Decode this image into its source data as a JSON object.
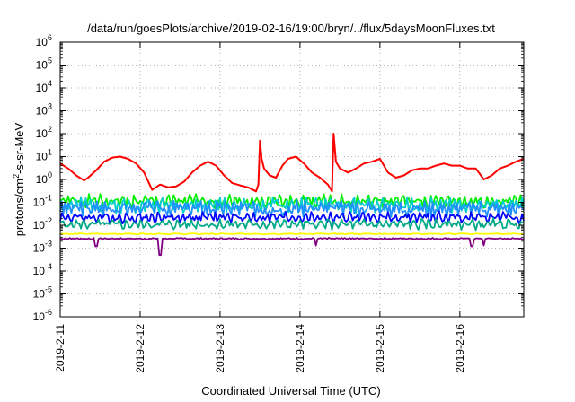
{
  "chart_data": {
    "type": "line",
    "title": "/data/run/goesPlots/archive/2019-02-16/19:00/bryn/../flux/5daysMoonFluxes.txt",
    "xlabel": "Coordinated Universal Time (UTC)",
    "ylabel": {
      "prefix": "protons/cm",
      "sup": "2",
      "suffix": "-s-sr-MeV"
    },
    "x_ticks": [
      "2019-2-11",
      "2019-2-12",
      "2019-2-13",
      "2019-2-14",
      "2019-2-15",
      "2019-2-16"
    ],
    "y_ticks": [
      {
        "base": "10",
        "exp": "6",
        "val": 6
      },
      {
        "base": "10",
        "exp": "5",
        "val": 5
      },
      {
        "base": "10",
        "exp": "4",
        "val": 4
      },
      {
        "base": "10",
        "exp": "3",
        "val": 3
      },
      {
        "base": "10",
        "exp": "2",
        "val": 2
      },
      {
        "base": "10",
        "exp": "1",
        "val": 1
      },
      {
        "base": "10",
        "exp": "0",
        "val": 0
      },
      {
        "base": "10",
        "exp": "-1",
        "val": -1
      },
      {
        "base": "10",
        "exp": "-2",
        "val": -2
      },
      {
        "base": "10",
        "exp": "-3",
        "val": -3
      },
      {
        "base": "10",
        "exp": "-4",
        "val": -4
      },
      {
        "base": "10",
        "exp": "-5",
        "val": -5
      },
      {
        "base": "10",
        "exp": "-6",
        "val": -6
      }
    ],
    "x_range_days": [
      0,
      5.8
    ],
    "y_scale": "log",
    "ylim": [
      1e-06,
      1000000.0
    ],
    "grid": true,
    "series": [
      {
        "color": "#ff0000",
        "points": [
          [
            0.0,
            5
          ],
          [
            0.1,
            3
          ],
          [
            0.2,
            1.5
          ],
          [
            0.3,
            0.9
          ],
          [
            0.35,
            1.2
          ],
          [
            0.45,
            2.5
          ],
          [
            0.55,
            6
          ],
          [
            0.65,
            9
          ],
          [
            0.75,
            10
          ],
          [
            0.85,
            8
          ],
          [
            0.95,
            5
          ],
          [
            1.05,
            2
          ],
          [
            1.15,
            0.35
          ],
          [
            1.25,
            0.6
          ],
          [
            1.35,
            0.45
          ],
          [
            1.45,
            0.5
          ],
          [
            1.55,
            0.8
          ],
          [
            1.65,
            2
          ],
          [
            1.75,
            4
          ],
          [
            1.85,
            6
          ],
          [
            1.95,
            4
          ],
          [
            2.05,
            1.5
          ],
          [
            2.15,
            0.7
          ],
          [
            2.25,
            0.55
          ],
          [
            2.35,
            0.45
          ],
          [
            2.45,
            0.3
          ],
          [
            2.48,
            0.6
          ],
          [
            2.5,
            50
          ],
          [
            2.52,
            8
          ],
          [
            2.55,
            3
          ],
          [
            2.62,
            1.5
          ],
          [
            2.7,
            1.2
          ],
          [
            2.78,
            4
          ],
          [
            2.85,
            8
          ],
          [
            2.95,
            10
          ],
          [
            3.05,
            5
          ],
          [
            3.15,
            2
          ],
          [
            3.25,
            1.2
          ],
          [
            3.35,
            0.6
          ],
          [
            3.4,
            0.3
          ],
          [
            3.42,
            100
          ],
          [
            3.45,
            6
          ],
          [
            3.5,
            3
          ],
          [
            3.6,
            2
          ],
          [
            3.7,
            3
          ],
          [
            3.8,
            5
          ],
          [
            3.9,
            6
          ],
          [
            4.0,
            8
          ],
          [
            4.1,
            2
          ],
          [
            4.2,
            1.2
          ],
          [
            4.3,
            1.5
          ],
          [
            4.4,
            2.5
          ],
          [
            4.5,
            3
          ],
          [
            4.6,
            3
          ],
          [
            4.7,
            4
          ],
          [
            4.8,
            5
          ],
          [
            4.9,
            4
          ],
          [
            5.0,
            4
          ],
          [
            5.1,
            3
          ],
          [
            5.2,
            3
          ],
          [
            5.3,
            1
          ],
          [
            5.4,
            1.5
          ],
          [
            5.5,
            3
          ],
          [
            5.6,
            4
          ],
          [
            5.7,
            6
          ],
          [
            5.8,
            8
          ]
        ]
      },
      {
        "color": "#00ee00",
        "base": 0.11,
        "amp": 0.7,
        "period": 0.07,
        "seed": 1
      },
      {
        "color": "#00cccc",
        "base": 0.075,
        "amp": 0.75,
        "period": 0.06,
        "seed": 2
      },
      {
        "color": "#1e90ff",
        "base": 0.055,
        "amp": 0.8,
        "period": 0.05,
        "seed": 3
      },
      {
        "color": "#0000ff",
        "base": 0.022,
        "amp": 0.55,
        "period": 0.08,
        "seed": 4
      },
      {
        "color": "#00aa88",
        "base": 0.011,
        "amp": 0.5,
        "period": 0.09,
        "seed": 5
      },
      {
        "color": "#ffff00",
        "base": 0.0042,
        "amp": 0.05,
        "period": 0.2,
        "seed": 6
      },
      {
        "color": "#800080",
        "base": 0.0026,
        "amp": 0.08,
        "period": 0.05,
        "seed": 7,
        "dips": [
          [
            0.45,
            0.0012
          ],
          [
            1.25,
            0.0005
          ],
          [
            3.2,
            0.0013
          ],
          [
            5.15,
            0.0012
          ],
          [
            5.3,
            0.0013
          ]
        ]
      }
    ]
  }
}
